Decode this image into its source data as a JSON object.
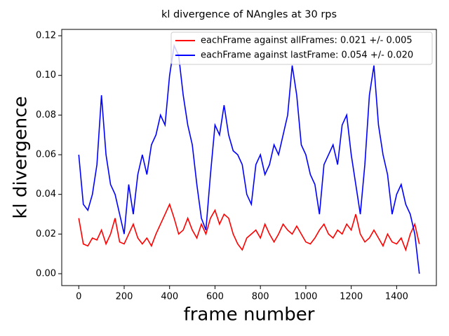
{
  "chart_data": {
    "type": "line",
    "title": "kl divergence of NAngles at 30 rps",
    "xlabel": "frame number",
    "ylabel": "kl divergence",
    "x": [
      0,
      20,
      40,
      60,
      80,
      100,
      120,
      140,
      160,
      180,
      200,
      220,
      240,
      260,
      280,
      300,
      320,
      340,
      360,
      380,
      400,
      420,
      440,
      460,
      480,
      500,
      520,
      540,
      560,
      580,
      600,
      620,
      640,
      660,
      680,
      700,
      720,
      740,
      760,
      780,
      800,
      820,
      840,
      860,
      880,
      900,
      920,
      940,
      960,
      980,
      1000,
      1020,
      1040,
      1060,
      1080,
      1100,
      1120,
      1140,
      1160,
      1180,
      1200,
      1220,
      1240,
      1260,
      1280,
      1300,
      1320,
      1340,
      1360,
      1380,
      1400,
      1420,
      1440,
      1460,
      1480,
      1500
    ],
    "series": [
      {
        "name": "eachFrame against allFrames: 0.021 +/- 0.005",
        "color": "#ff0000",
        "values": [
          0.028,
          0.015,
          0.014,
          0.018,
          0.017,
          0.022,
          0.015,
          0.02,
          0.028,
          0.016,
          0.015,
          0.02,
          0.025,
          0.018,
          0.015,
          0.018,
          0.014,
          0.02,
          0.025,
          0.03,
          0.035,
          0.028,
          0.02,
          0.022,
          0.028,
          0.022,
          0.018,
          0.025,
          0.02,
          0.028,
          0.032,
          0.025,
          0.03,
          0.028,
          0.02,
          0.015,
          0.012,
          0.018,
          0.02,
          0.022,
          0.018,
          0.025,
          0.02,
          0.016,
          0.02,
          0.025,
          0.022,
          0.02,
          0.024,
          0.02,
          0.016,
          0.015,
          0.018,
          0.022,
          0.025,
          0.02,
          0.018,
          0.022,
          0.02,
          0.025,
          0.022,
          0.03,
          0.02,
          0.016,
          0.018,
          0.022,
          0.018,
          0.014,
          0.02,
          0.016,
          0.015,
          0.018,
          0.012,
          0.02,
          0.025,
          0.015
        ]
      },
      {
        "name": "eachFrame against lastFrame: 0.054 +/- 0.020",
        "color": "#0000ff",
        "values": [
          0.06,
          0.035,
          0.032,
          0.04,
          0.055,
          0.09,
          0.06,
          0.045,
          0.04,
          0.03,
          0.02,
          0.045,
          0.03,
          0.05,
          0.06,
          0.05,
          0.065,
          0.07,
          0.08,
          0.075,
          0.1,
          0.115,
          0.11,
          0.09,
          0.075,
          0.065,
          0.045,
          0.028,
          0.022,
          0.05,
          0.075,
          0.07,
          0.085,
          0.07,
          0.062,
          0.06,
          0.055,
          0.04,
          0.035,
          0.055,
          0.06,
          0.05,
          0.055,
          0.065,
          0.06,
          0.07,
          0.08,
          0.105,
          0.09,
          0.065,
          0.06,
          0.05,
          0.045,
          0.03,
          0.055,
          0.06,
          0.065,
          0.055,
          0.075,
          0.08,
          0.06,
          0.045,
          0.03,
          0.055,
          0.09,
          0.105,
          0.075,
          0.06,
          0.05,
          0.03,
          0.04,
          0.045,
          0.035,
          0.03,
          0.02,
          0.0
        ]
      }
    ],
    "xlim": [
      -75,
      1575
    ],
    "ylim": [
      -0.006,
      0.1232
    ],
    "xticks": [
      0,
      200,
      400,
      600,
      800,
      1000,
      1200,
      1400
    ],
    "yticks": [
      {
        "value": 0,
        "label": "0.00"
      },
      {
        "value": 0.02,
        "label": "0.02"
      },
      {
        "value": 0.04,
        "label": "0.04"
      },
      {
        "value": 0.06,
        "label": "0.06"
      },
      {
        "value": 0.08,
        "label": "0.08"
      },
      {
        "value": 0.1,
        "label": "0.10"
      },
      {
        "value": 0.12,
        "label": "0.12"
      }
    ],
    "legend": "upper right"
  }
}
